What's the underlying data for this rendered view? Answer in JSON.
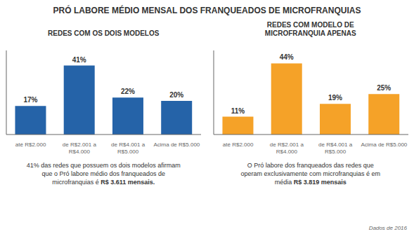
{
  "title": "PRÓ LABORE MÉDIO MENSAL DOS FRANQUEADOS DE MICROFRANQUIAS",
  "footer": "Dados de 2016",
  "chart_data": [
    {
      "type": "bar",
      "subtitle": "REDES COM OS DOIS MODELOS",
      "categories": [
        "até R$2.000",
        "de R$2.001 a\nR$4.000",
        "de R$4.001 a\nR$5.000",
        "Acima de R$5.000"
      ],
      "values": [
        17,
        41,
        22,
        20
      ],
      "value_labels": [
        "17%",
        "41%",
        "22%",
        "20%"
      ],
      "data_labels": true,
      "color": "#2563a8",
      "ylim": [
        0,
        50
      ],
      "grid": false,
      "tick_labels": "x",
      "note": [
        "41% das redes que possuem os dois modelos afirmam",
        "que o Pró labore médio dos franqueados de",
        "microfranquias é "
      ],
      "note_highlight": "R$ 3.611 mensais."
    },
    {
      "type": "bar",
      "subtitle": "REDES COM MODELO DE\nMICROFRANQUIA APENAS",
      "categories": [
        "até R$2.000",
        "de R$2.001 a\nR$4.000",
        "de R$4.001 a\nR$5.000",
        "Acima de R$5.000"
      ],
      "values": [
        11,
        44,
        19,
        25
      ],
      "value_labels": [
        "11%",
        "44%",
        "19%",
        "25%"
      ],
      "data_labels": true,
      "color": "#f5a228",
      "ylim": [
        0,
        52
      ],
      "grid": false,
      "tick_labels": "x",
      "note": [
        "O Pró labore dos franqueados das redes que",
        "operam exclusivamente com microfranquias é em",
        "média "
      ],
      "note_highlight": "R$ 3.819 mensais"
    }
  ]
}
